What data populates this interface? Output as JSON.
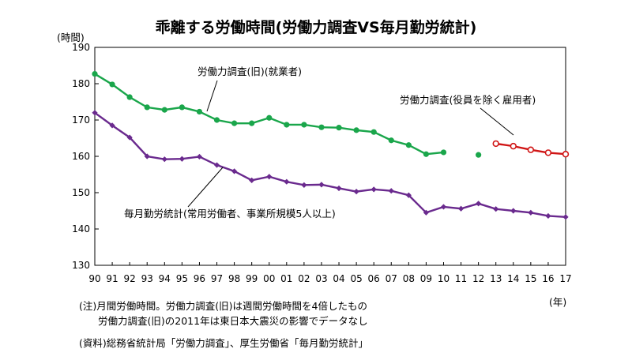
{
  "chart_data": {
    "type": "line",
    "title": "乖離する労働時間(労働力調査VS毎月勤労統計)",
    "ylabel": "(時間)",
    "xlabel": "(年)",
    "ylim": [
      130,
      190
    ],
    "yticks": [
      130,
      140,
      150,
      160,
      170,
      180,
      190
    ],
    "x": [
      "90",
      "91",
      "92",
      "93",
      "94",
      "95",
      "96",
      "97",
      "98",
      "99",
      "00",
      "01",
      "02",
      "03",
      "04",
      "05",
      "06",
      "07",
      "08",
      "09",
      "10",
      "11",
      "12",
      "13",
      "14",
      "15",
      "16",
      "17"
    ],
    "grid": false,
    "series": [
      {
        "name": "労働力調査(旧)(就業者)",
        "color": "#1aa64b",
        "marker": "circle-filled",
        "values": [
          182.7,
          179.8,
          176.3,
          173.5,
          172.8,
          173.5,
          172.3,
          170.0,
          169.1,
          169.1,
          170.6,
          168.7,
          168.7,
          168.0,
          167.9,
          167.2,
          166.7,
          164.4,
          163.1,
          160.6,
          161.1,
          null,
          160.4,
          null,
          null,
          null,
          null,
          null
        ],
        "connected_until_index": 20
      },
      {
        "name": "労働力調査(役員を除く雇用者)",
        "color": "#d01515",
        "marker": "circle-open",
        "values": [
          null,
          null,
          null,
          null,
          null,
          null,
          null,
          null,
          null,
          null,
          null,
          null,
          null,
          null,
          null,
          null,
          null,
          null,
          null,
          null,
          null,
          null,
          null,
          163.5,
          162.8,
          161.8,
          161.0,
          160.6
        ]
      },
      {
        "name": "毎月勤労統計(常用労働者、事業所規模5人以上)",
        "color": "#6a2a8e",
        "marker": "diamond",
        "values": [
          172.0,
          168.5,
          165.2,
          160.0,
          159.2,
          159.3,
          159.9,
          157.6,
          155.9,
          153.4,
          154.4,
          153.0,
          152.1,
          152.2,
          151.2,
          150.3,
          150.9,
          150.5,
          149.3,
          144.5,
          146.1,
          145.6,
          147.0,
          145.5,
          145.0,
          144.5,
          143.6,
          143.3
        ]
      }
    ]
  },
  "notes": {
    "note1": "(注)月間労働時間。労働力調査(旧)は週間労働時間を4倍したもの",
    "note2": "労働力調査(旧)の2011年は東日本大震災の影響でデータなし",
    "source": "(資料)総務省統計局「労働力調査」、厚生労働省「毎月勤労統計」"
  }
}
